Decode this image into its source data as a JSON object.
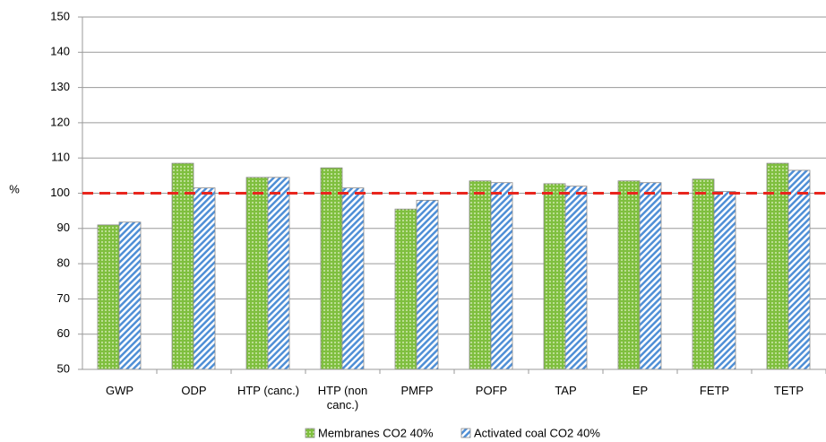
{
  "chart_data": {
    "type": "bar",
    "y_label": "%",
    "categories": [
      "GWP",
      "ODP",
      "HTP (canc.)",
      "HTP (non canc.)",
      "PMFP",
      "POFP",
      "TAP",
      "EP",
      "FETP",
      "TETP"
    ],
    "series": [
      {
        "name": "Membranes CO2 40%",
        "color": "#7fbf3f",
        "values": [
          91,
          108.5,
          104.5,
          107.2,
          95.5,
          103.5,
          102.7,
          103.5,
          104,
          108.5
        ]
      },
      {
        "name": "Activated coal CO2 40%",
        "color": "#4f8fd6",
        "values": [
          91.8,
          101.5,
          104.5,
          101.5,
          98,
          103,
          102,
          103,
          100.5,
          106.5
        ]
      }
    ],
    "ylim": [
      50,
      150
    ],
    "yticks": [
      50,
      60,
      70,
      80,
      90,
      100,
      110,
      120,
      130,
      140,
      150
    ],
    "grid": true,
    "reference_line": {
      "value": 100,
      "color": "#e8261e"
    }
  }
}
